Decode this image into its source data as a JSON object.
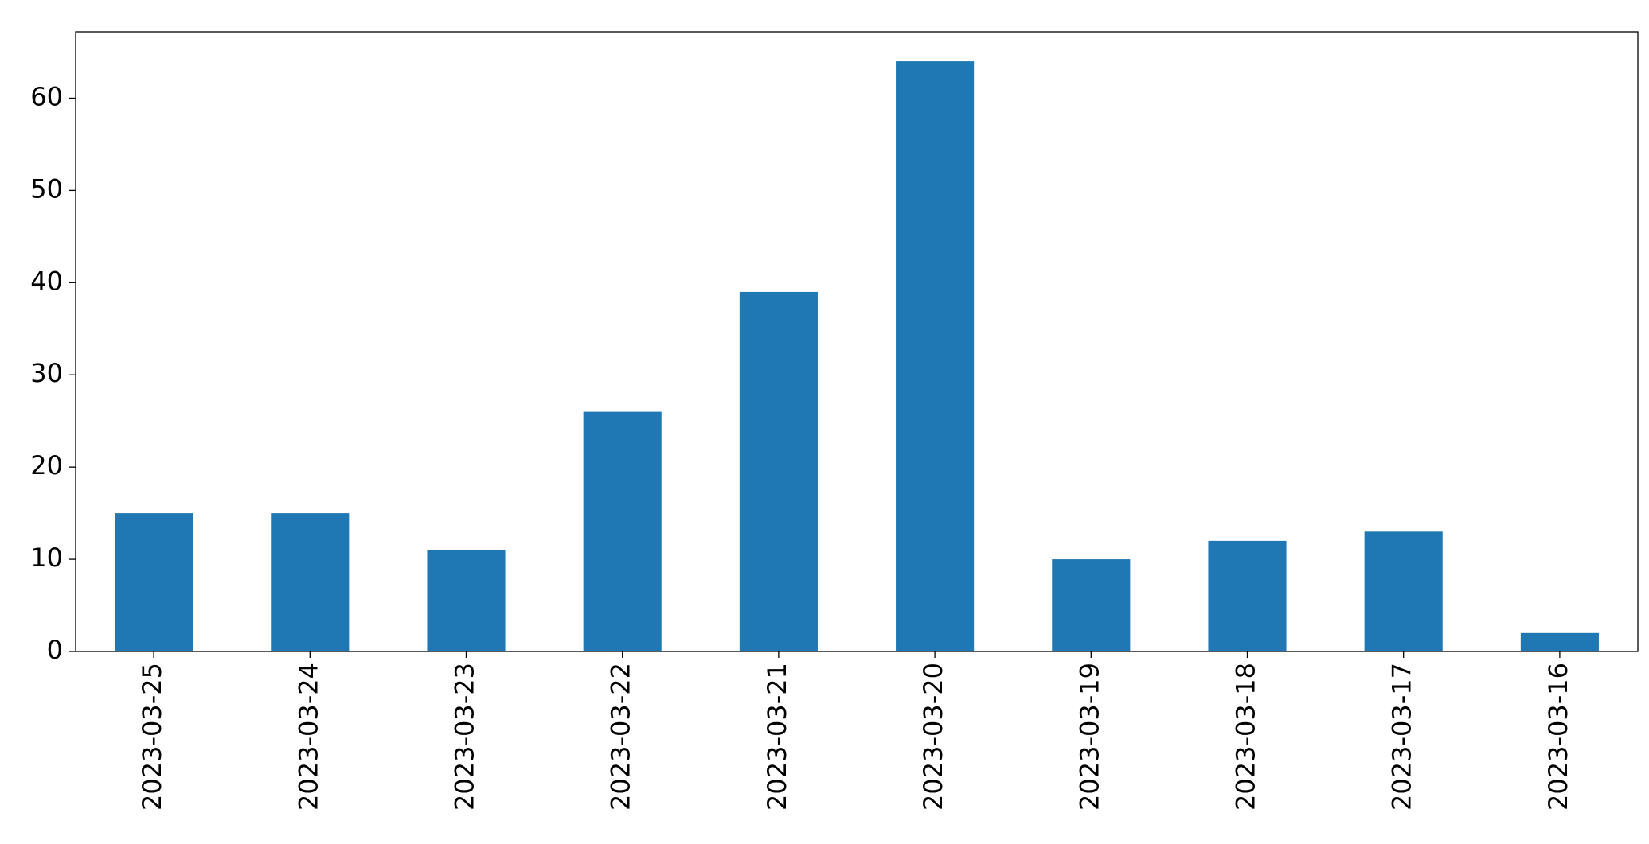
{
  "chart_data": {
    "type": "bar",
    "categories": [
      "2023-03-25",
      "2023-03-24",
      "2023-03-23",
      "2023-03-22",
      "2023-03-21",
      "2023-03-20",
      "2023-03-19",
      "2023-03-18",
      "2023-03-17",
      "2023-03-16"
    ],
    "values": [
      15,
      15,
      11,
      26,
      39,
      64,
      10,
      12,
      13,
      2
    ],
    "color": "#1f77b4",
    "ylim": [
      0,
      67.2
    ],
    "yticks": [
      0,
      10,
      20,
      30,
      40,
      50,
      60
    ],
    "grid": false
  }
}
